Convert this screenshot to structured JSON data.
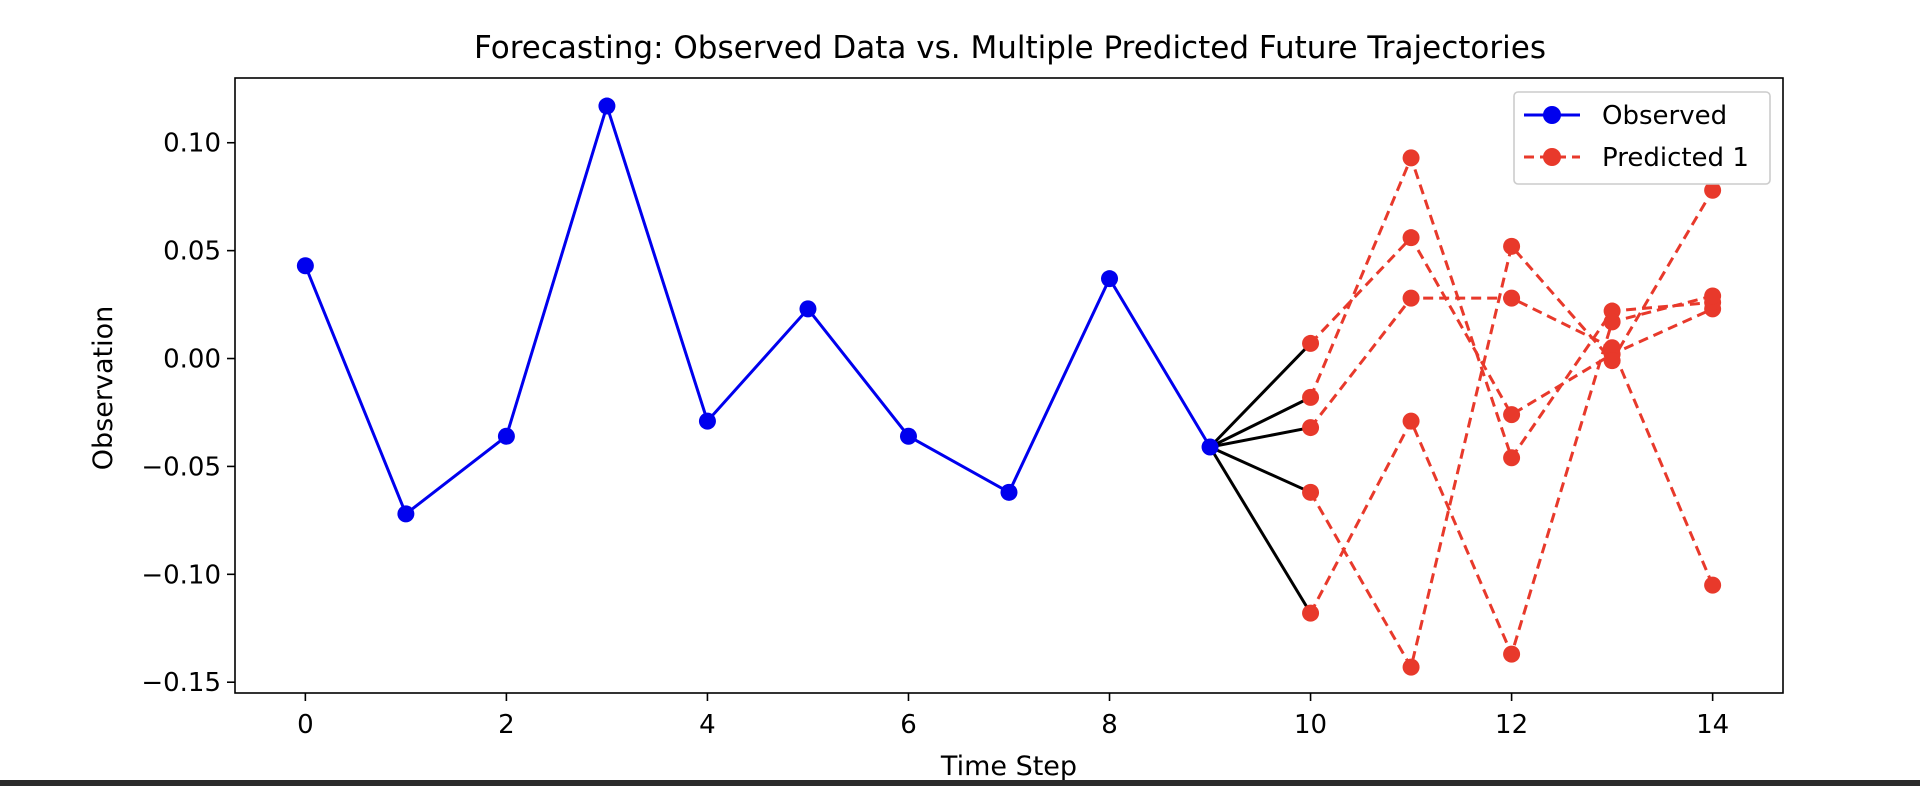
{
  "chart_data": {
    "type": "line",
    "title": "Forecasting: Observed Data vs. Multiple Predicted Future Trajectories",
    "xlabel": "Time Step",
    "ylabel": "Observation",
    "xlim": [
      -0.7,
      14.7
    ],
    "ylim": [
      -0.155,
      0.13
    ],
    "xticks": [
      0,
      2,
      4,
      6,
      8,
      10,
      12,
      14
    ],
    "xtick_labels": [
      "0",
      "2",
      "4",
      "6",
      "8",
      "10",
      "12",
      "14"
    ],
    "yticks": [
      -0.15,
      -0.1,
      -0.05,
      0.0,
      0.05,
      0.1
    ],
    "ytick_labels": [
      "−0.15",
      "−0.10",
      "−0.05",
      "0.00",
      "0.05",
      "0.10"
    ],
    "grid": false,
    "legend_position": "top-right",
    "legend": [
      {
        "label": "Observed",
        "series": "observed"
      },
      {
        "label": "Predicted 1",
        "series": "predicted"
      }
    ],
    "colors": {
      "observed": "#0000ee",
      "predicted": "#e8392b",
      "connector": "#000000"
    },
    "observed": {
      "x": [
        0,
        1,
        2,
        3,
        4,
        5,
        6,
        7,
        8,
        9
      ],
      "y": [
        0.043,
        -0.072,
        -0.036,
        0.117,
        -0.029,
        0.023,
        -0.036,
        -0.062,
        0.037,
        -0.041
      ]
    },
    "predicted": [
      {
        "x": [
          10,
          11,
          12,
          13,
          14
        ],
        "y": [
          0.007,
          0.056,
          -0.026,
          0.002,
          0.023
        ]
      },
      {
        "x": [
          10,
          11,
          12,
          13,
          14
        ],
        "y": [
          -0.018,
          0.093,
          -0.046,
          0.022,
          0.026
        ]
      },
      {
        "x": [
          10,
          11,
          12,
          13,
          14
        ],
        "y": [
          -0.032,
          0.028,
          0.028,
          0.005,
          -0.105
        ]
      },
      {
        "x": [
          10,
          11,
          12,
          13,
          14
        ],
        "y": [
          -0.062,
          -0.143,
          0.052,
          -0.001,
          0.078
        ]
      },
      {
        "x": [
          10,
          11,
          12,
          13,
          14
        ],
        "y": [
          -0.118,
          -0.029,
          -0.137,
          0.017,
          0.029
        ]
      }
    ],
    "connector_note_ignored": ""
  }
}
